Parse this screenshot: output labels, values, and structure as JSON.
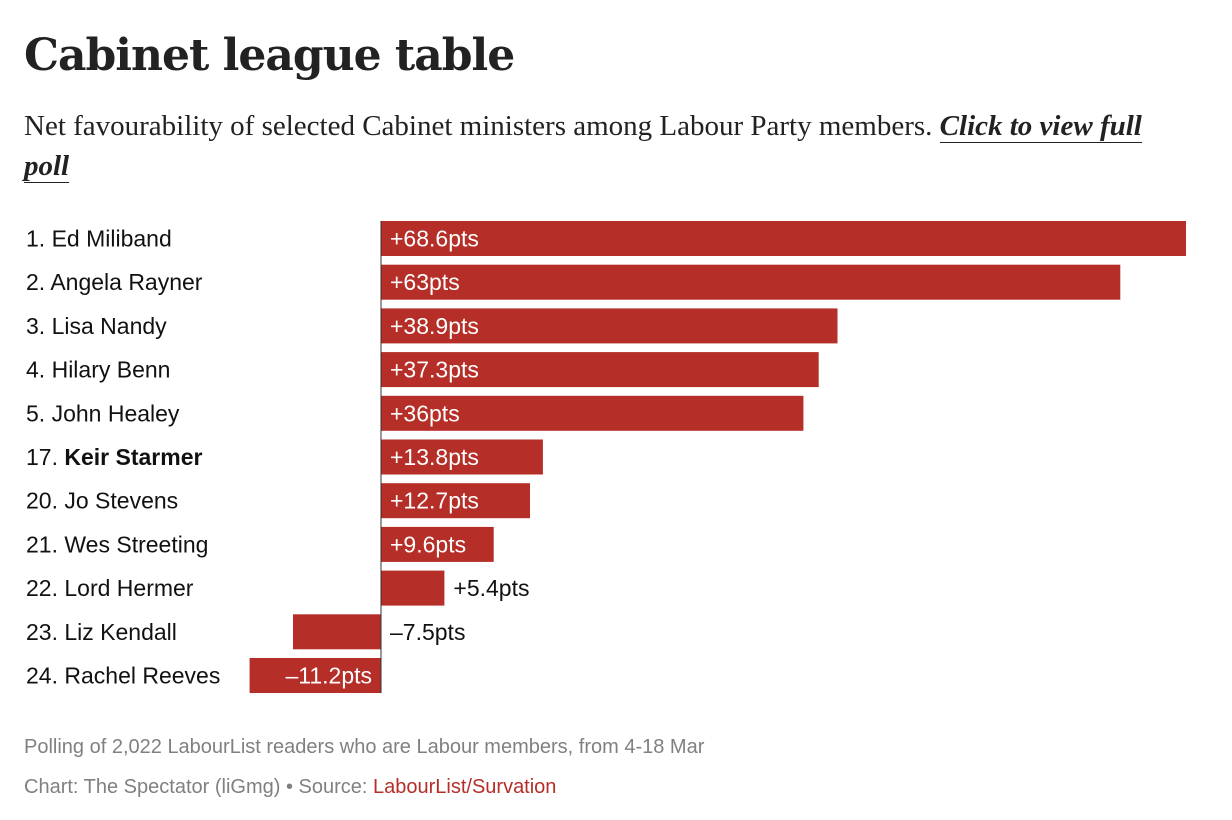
{
  "page": {
    "title": "Cabinet league table",
    "subtitle_text": "Net favourability of selected Cabinet ministers among Labour Party members.",
    "subtitle_link": "Click to view full poll",
    "footnote": "Polling of 2,022 LabourList readers who are Labour members, from 4-18 Mar",
    "credit_prefix": "Chart: The Spectator (liGmg) • Source: ",
    "source_link": "LabourList/Survation"
  },
  "colors": {
    "bar": "#b52e27",
    "label_inside": "#ffffff",
    "label_outside": "#111111",
    "axis": "#333333"
  },
  "chart_data": {
    "type": "bar",
    "orientation": "horizontal",
    "title": "Cabinet league table",
    "xlabel": "",
    "ylabel": "",
    "xlim": [
      -11.2,
      68.6
    ],
    "grid": false,
    "categories": [
      {
        "rank": "1.",
        "name": "Ed Miliband",
        "bold": false
      },
      {
        "rank": "2.",
        "name": "Angela Rayner",
        "bold": false
      },
      {
        "rank": "3.",
        "name": "Lisa Nandy",
        "bold": false
      },
      {
        "rank": "4.",
        "name": "Hilary Benn",
        "bold": false
      },
      {
        "rank": "5.",
        "name": "John Healey",
        "bold": false
      },
      {
        "rank": "17.",
        "name": "Keir Starmer",
        "bold": true
      },
      {
        "rank": "20.",
        "name": "Jo Stevens",
        "bold": false
      },
      {
        "rank": "21.",
        "name": "Wes Streeting",
        "bold": false
      },
      {
        "rank": "22.",
        "name": "Lord Hermer",
        "bold": false
      },
      {
        "rank": "23.",
        "name": "Liz Kendall",
        "bold": false
      },
      {
        "rank": "24.",
        "name": "Rachel Reeves",
        "bold": false
      }
    ],
    "values": [
      68.6,
      63,
      38.9,
      37.3,
      36,
      13.8,
      12.7,
      9.6,
      5.4,
      -7.5,
      -11.2
    ],
    "value_labels": [
      "+68.6pts",
      "+63pts",
      "+38.9pts",
      "+37.3pts",
      "+36pts",
      "+13.8pts",
      "+12.7pts",
      "+9.6pts",
      "+5.4pts",
      "–7.5pts",
      "–11.2pts"
    ]
  }
}
